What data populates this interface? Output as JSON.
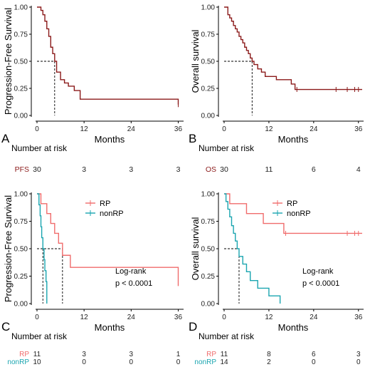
{
  "colors": {
    "dark_red": "#8B1A1A",
    "rp": "#F06C6C",
    "nonrp": "#1AA5B0",
    "axis": "#000000"
  },
  "chart_data": [
    {
      "type": "line",
      "panel_label": "A",
      "title": "",
      "xlabel": "Months",
      "ylabel": "Progression-Free Survival",
      "xlim": [
        0,
        37
      ],
      "ylim": [
        0,
        1
      ],
      "xticks": [
        "0",
        "12",
        "24",
        "36"
      ],
      "yticks": [
        "0.00",
        "0.25",
        "0.50",
        "0.75",
        "1.00"
      ],
      "median_x": 4.5,
      "series": [
        {
          "color_key": "dark_red",
          "x": [
            0,
            1.0,
            1.5,
            2.0,
            2.5,
            3.0,
            3.5,
            4.0,
            4.5,
            5.0,
            6.0,
            7.0,
            8.0,
            9.5,
            11.0,
            36.0
          ],
          "y": [
            1.0,
            0.97,
            0.93,
            0.87,
            0.8,
            0.73,
            0.63,
            0.57,
            0.5,
            0.4,
            0.33,
            0.3,
            0.27,
            0.23,
            0.15,
            0.1
          ]
        }
      ],
      "censor": [
        {
          "x": 36,
          "y": 0.1
        }
      ],
      "risk_table": {
        "title": "Number at risk",
        "rows": [
          {
            "label": "PFS",
            "color_key": "dark_red",
            "values": [
              "30",
              "3",
              "3",
              "3"
            ]
          }
        ]
      }
    },
    {
      "type": "line",
      "panel_label": "B",
      "title": "",
      "xlabel": "Months",
      "ylabel": "Overall survival",
      "xlim": [
        0,
        37
      ],
      "ylim": [
        0,
        1
      ],
      "xticks": [
        "0",
        "12",
        "24",
        "36"
      ],
      "yticks": [
        "0.00",
        "0.25",
        "0.50",
        "0.75",
        "1.00"
      ],
      "median_x": 7.5,
      "series": [
        {
          "color_key": "dark_red",
          "x": [
            0,
            1,
            1.5,
            2,
            2.5,
            3,
            3.5,
            4,
            4.5,
            5,
            5.5,
            6,
            6.5,
            7,
            7.5,
            8,
            9,
            10,
            11,
            14,
            18,
            19,
            37
          ],
          "y": [
            1.0,
            0.93,
            0.9,
            0.87,
            0.83,
            0.8,
            0.77,
            0.73,
            0.7,
            0.67,
            0.63,
            0.6,
            0.57,
            0.53,
            0.5,
            0.47,
            0.43,
            0.4,
            0.36,
            0.33,
            0.29,
            0.24,
            0.24
          ]
        }
      ],
      "censor": [
        {
          "x": 19.5,
          "y": 0.24
        },
        {
          "x": 30,
          "y": 0.24
        },
        {
          "x": 33,
          "y": 0.24
        },
        {
          "x": 35,
          "y": 0.24
        },
        {
          "x": 36,
          "y": 0.24
        }
      ],
      "risk_table": {
        "title": "Number at risk",
        "rows": [
          {
            "label": "OS",
            "color_key": "dark_red",
            "values": [
              "30",
              "11",
              "6",
              "4"
            ]
          }
        ]
      }
    },
    {
      "type": "line",
      "panel_label": "C",
      "title": "",
      "xlabel": "Months",
      "ylabel": "Progression-Free Survival",
      "xlim": [
        0,
        37
      ],
      "ylim": [
        0,
        1
      ],
      "xticks": [
        "0",
        "12",
        "24",
        "36"
      ],
      "yticks": [
        "0.00",
        "0.25",
        "0.50",
        "0.75",
        "1.00"
      ],
      "medians": [
        1.5,
        6.5
      ],
      "legend": [
        {
          "name": "RP",
          "color_key": "rp"
        },
        {
          "name": "nonRP",
          "color_key": "nonrp"
        }
      ],
      "annotation": [
        "Log-rank",
        "p < 0.0001"
      ],
      "series": [
        {
          "name": "RP",
          "color_key": "rp",
          "x": [
            0,
            1.0,
            2.5,
            3.5,
            4.5,
            5.5,
            6.5,
            8.5,
            36.0
          ],
          "y": [
            1.0,
            0.91,
            0.82,
            0.73,
            0.64,
            0.55,
            0.44,
            0.33,
            0.16
          ]
        },
        {
          "name": "nonRP",
          "color_key": "nonrp",
          "x": [
            0,
            0.5,
            0.8,
            1.0,
            1.2,
            1.5,
            1.8,
            2.0,
            2.3,
            2.5
          ],
          "y": [
            1.0,
            0.9,
            0.8,
            0.7,
            0.6,
            0.5,
            0.4,
            0.3,
            0.2,
            0.0
          ]
        }
      ],
      "risk_table": {
        "title": "Number at risk",
        "rows": [
          {
            "label": "RP",
            "color_key": "rp",
            "values": [
              "11",
              "3",
              "3",
              "1"
            ]
          },
          {
            "label": "nonRP",
            "color_key": "nonrp",
            "values": [
              "10",
              "0",
              "0",
              "0"
            ]
          }
        ]
      }
    },
    {
      "type": "line",
      "panel_label": "D",
      "title": "",
      "xlabel": "Months",
      "ylabel": "Overall survival",
      "xlim": [
        0,
        37
      ],
      "ylim": [
        0,
        1
      ],
      "xticks": [
        "0",
        "12",
        "24",
        "36"
      ],
      "yticks": [
        "0.00",
        "0.25",
        "0.50",
        "0.75",
        "1.00"
      ],
      "medians": [
        4
      ],
      "legend": [
        {
          "name": "RP",
          "color_key": "rp"
        },
        {
          "name": "nonRP",
          "color_key": "nonrp"
        }
      ],
      "annotation": [
        "Log-rank",
        "p < 0.0001"
      ],
      "series": [
        {
          "name": "RP",
          "color_key": "rp",
          "x": [
            0,
            1.5,
            6.0,
            10.5,
            16.0,
            37.0
          ],
          "y": [
            1.0,
            0.91,
            0.82,
            0.73,
            0.64,
            0.64
          ]
        },
        {
          "name": "nonRP",
          "color_key": "nonrp",
          "x": [
            0,
            0.5,
            1.0,
            1.5,
            2.0,
            2.5,
            3.0,
            3.5,
            4.0,
            5.0,
            6.0,
            7.0,
            9.0,
            12.0,
            15.0
          ],
          "y": [
            1.0,
            0.93,
            0.86,
            0.79,
            0.71,
            0.64,
            0.57,
            0.5,
            0.43,
            0.36,
            0.29,
            0.21,
            0.14,
            0.07,
            0.0
          ]
        }
      ],
      "censor_series": [
        {
          "series": 0,
          "points": [
            {
              "x": 16.5,
              "y": 0.64
            },
            {
              "x": 33,
              "y": 0.64
            },
            {
              "x": 35,
              "y": 0.64
            },
            {
              "x": 36,
              "y": 0.64
            }
          ]
        }
      ],
      "risk_table": {
        "title": "Number at risk",
        "rows": [
          {
            "label": "RP",
            "color_key": "rp",
            "values": [
              "11",
              "8",
              "6",
              "3"
            ]
          },
          {
            "label": "nonRP",
            "color_key": "nonrp",
            "values": [
              "14",
              "2",
              "0",
              "0"
            ]
          }
        ]
      }
    }
  ]
}
